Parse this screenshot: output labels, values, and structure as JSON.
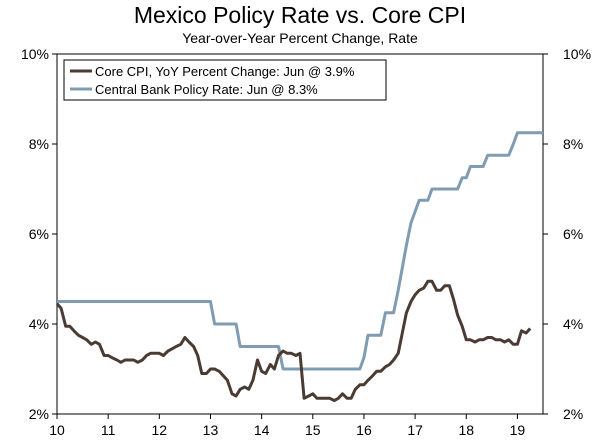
{
  "chart_data": {
    "type": "line",
    "title": "Mexico Policy Rate vs. Core CPI",
    "subtitle": "Year-over-Year Percent Change, Rate",
    "xlabel": "",
    "ylabel": "",
    "xlim": [
      10,
      19.5
    ],
    "ylim": [
      2,
      10
    ],
    "x_ticks": [
      {
        "value": 10,
        "label": "10"
      },
      {
        "value": 11,
        "label": "11"
      },
      {
        "value": 12,
        "label": "12"
      },
      {
        "value": 13,
        "label": "13"
      },
      {
        "value": 14,
        "label": "14"
      },
      {
        "value": 15,
        "label": "15"
      },
      {
        "value": 16,
        "label": "16"
      },
      {
        "value": 17,
        "label": "17"
      },
      {
        "value": 18,
        "label": "18"
      },
      {
        "value": 19,
        "label": "19"
      }
    ],
    "y_ticks_left": [
      {
        "value": 2,
        "label": "2%"
      },
      {
        "value": 4,
        "label": "4%"
      },
      {
        "value": 6,
        "label": "6%"
      },
      {
        "value": 8,
        "label": "8%"
      },
      {
        "value": 10,
        "label": "10%"
      }
    ],
    "y_ticks_right": [
      {
        "value": 2,
        "label": "2%"
      },
      {
        "value": 4,
        "label": "4%"
      },
      {
        "value": 6,
        "label": "6%"
      },
      {
        "value": 8,
        "label": "8%"
      },
      {
        "value": 10,
        "label": "10%"
      }
    ],
    "legend_position": "top-left",
    "series": [
      {
        "name": "Core CPI, YoY Percent Change: Jun @ 3.9%",
        "color": "#4a3b33",
        "points": [
          [
            10.0,
            4.45
          ],
          [
            10.08,
            4.35
          ],
          [
            10.17,
            3.95
          ],
          [
            10.25,
            3.95
          ],
          [
            10.33,
            3.85
          ],
          [
            10.42,
            3.75
          ],
          [
            10.5,
            3.7
          ],
          [
            10.58,
            3.65
          ],
          [
            10.67,
            3.55
          ],
          [
            10.75,
            3.6
          ],
          [
            10.83,
            3.55
          ],
          [
            10.92,
            3.3
          ],
          [
            11.0,
            3.3
          ],
          [
            11.08,
            3.25
          ],
          [
            11.17,
            3.2
          ],
          [
            11.25,
            3.15
          ],
          [
            11.33,
            3.2
          ],
          [
            11.42,
            3.2
          ],
          [
            11.5,
            3.2
          ],
          [
            11.58,
            3.15
          ],
          [
            11.67,
            3.2
          ],
          [
            11.75,
            3.3
          ],
          [
            11.83,
            3.35
          ],
          [
            11.92,
            3.35
          ],
          [
            12.0,
            3.35
          ],
          [
            12.08,
            3.3
          ],
          [
            12.17,
            3.4
          ],
          [
            12.25,
            3.45
          ],
          [
            12.33,
            3.5
          ],
          [
            12.42,
            3.55
          ],
          [
            12.5,
            3.7
          ],
          [
            12.58,
            3.6
          ],
          [
            12.67,
            3.5
          ],
          [
            12.75,
            3.3
          ],
          [
            12.83,
            2.9
          ],
          [
            12.92,
            2.9
          ],
          [
            13.0,
            3.0
          ],
          [
            13.08,
            3.0
          ],
          [
            13.17,
            2.95
          ],
          [
            13.25,
            2.85
          ],
          [
            13.33,
            2.75
          ],
          [
            13.42,
            2.45
          ],
          [
            13.5,
            2.4
          ],
          [
            13.58,
            2.55
          ],
          [
            13.67,
            2.6
          ],
          [
            13.75,
            2.55
          ],
          [
            13.83,
            2.75
          ],
          [
            13.92,
            3.2
          ],
          [
            14.0,
            2.95
          ],
          [
            14.08,
            2.9
          ],
          [
            14.17,
            3.1
          ],
          [
            14.25,
            3.0
          ],
          [
            14.33,
            3.3
          ],
          [
            14.42,
            3.4
          ],
          [
            14.5,
            3.35
          ],
          [
            14.58,
            3.35
          ],
          [
            14.67,
            3.3
          ],
          [
            14.75,
            3.35
          ],
          [
            14.83,
            2.35
          ],
          [
            14.92,
            2.4
          ],
          [
            15.0,
            2.45
          ],
          [
            15.08,
            2.35
          ],
          [
            15.17,
            2.35
          ],
          [
            15.25,
            2.35
          ],
          [
            15.33,
            2.35
          ],
          [
            15.42,
            2.3
          ],
          [
            15.5,
            2.35
          ],
          [
            15.58,
            2.45
          ],
          [
            15.67,
            2.35
          ],
          [
            15.75,
            2.35
          ],
          [
            15.83,
            2.55
          ],
          [
            15.92,
            2.65
          ],
          [
            16.0,
            2.65
          ],
          [
            16.08,
            2.75
          ],
          [
            16.17,
            2.85
          ],
          [
            16.25,
            2.95
          ],
          [
            16.33,
            2.95
          ],
          [
            16.42,
            3.05
          ],
          [
            16.5,
            3.1
          ],
          [
            16.58,
            3.2
          ],
          [
            16.67,
            3.35
          ],
          [
            16.75,
            3.8
          ],
          [
            16.83,
            4.25
          ],
          [
            16.92,
            4.5
          ],
          [
            17.0,
            4.65
          ],
          [
            17.08,
            4.75
          ],
          [
            17.17,
            4.8
          ],
          [
            17.25,
            4.95
          ],
          [
            17.33,
            4.95
          ],
          [
            17.42,
            4.75
          ],
          [
            17.5,
            4.75
          ],
          [
            17.58,
            4.85
          ],
          [
            17.67,
            4.85
          ],
          [
            17.75,
            4.55
          ],
          [
            17.83,
            4.2
          ],
          [
            17.92,
            3.95
          ],
          [
            18.0,
            3.65
          ],
          [
            18.08,
            3.65
          ],
          [
            18.17,
            3.6
          ],
          [
            18.25,
            3.65
          ],
          [
            18.33,
            3.65
          ],
          [
            18.42,
            3.7
          ],
          [
            18.5,
            3.7
          ],
          [
            18.58,
            3.65
          ],
          [
            18.67,
            3.65
          ],
          [
            18.75,
            3.6
          ],
          [
            18.83,
            3.65
          ],
          [
            18.92,
            3.55
          ],
          [
            19.0,
            3.55
          ],
          [
            19.08,
            3.85
          ],
          [
            19.17,
            3.8
          ],
          [
            19.25,
            3.9
          ]
        ]
      },
      {
        "name": "Central Bank Policy Rate: Jun @ 8.3%",
        "color": "#7f9cb2",
        "points": [
          [
            10.0,
            4.5
          ],
          [
            13.0,
            4.5
          ],
          [
            13.08,
            4.0
          ],
          [
            13.5,
            4.0
          ],
          [
            13.58,
            3.5
          ],
          [
            14.33,
            3.5
          ],
          [
            14.42,
            3.0
          ],
          [
            15.92,
            3.0
          ],
          [
            16.0,
            3.25
          ],
          [
            16.08,
            3.75
          ],
          [
            16.33,
            3.75
          ],
          [
            16.42,
            4.25
          ],
          [
            16.58,
            4.25
          ],
          [
            16.67,
            4.75
          ],
          [
            16.75,
            5.25
          ],
          [
            16.83,
            5.75
          ],
          [
            16.92,
            6.25
          ],
          [
            17.0,
            6.5
          ],
          [
            17.08,
            6.75
          ],
          [
            17.25,
            6.75
          ],
          [
            17.33,
            7.0
          ],
          [
            17.83,
            7.0
          ],
          [
            17.92,
            7.25
          ],
          [
            18.0,
            7.25
          ],
          [
            18.08,
            7.5
          ],
          [
            18.33,
            7.5
          ],
          [
            18.42,
            7.75
          ],
          [
            18.83,
            7.75
          ],
          [
            18.92,
            8.0
          ],
          [
            19.0,
            8.25
          ],
          [
            19.5,
            8.25
          ]
        ]
      }
    ]
  }
}
